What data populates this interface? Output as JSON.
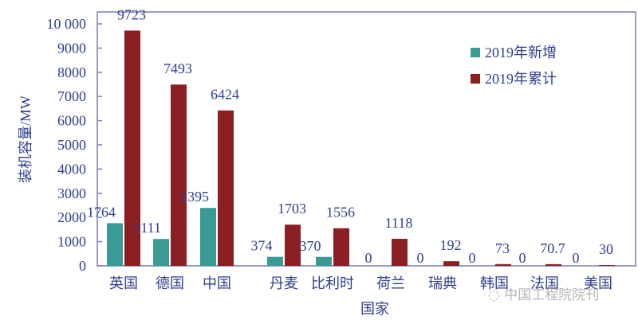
{
  "chart_data": {
    "type": "bar",
    "xlabel": "国家",
    "ylabel": "装机容量/MW",
    "ylim": [
      0,
      10000
    ],
    "yticks": [
      "0",
      "1000",
      "2000",
      "3000",
      "4000",
      "5000",
      "6000",
      "7000",
      "8000",
      "9000",
      "10 000"
    ],
    "categories": [
      "英国",
      "德国",
      "中国",
      "丹麦",
      "比利时",
      "荷兰",
      "瑞典",
      "韩国",
      "法国",
      "美国"
    ],
    "series": [
      {
        "name": "2019年新增",
        "color": "#3a9a94",
        "values": [
          1764,
          1111,
          2395,
          374,
          370,
          0,
          0,
          0,
          0,
          0
        ],
        "labels": [
          "1764",
          "1111",
          "2395",
          "374",
          "370",
          "0",
          "0",
          "0",
          "0",
          "0"
        ]
      },
      {
        "name": "2019年累计",
        "color": "#8b1f24",
        "values": [
          9723,
          7493,
          6424,
          1703,
          1556,
          1118,
          192,
          73,
          70.7,
          30
        ],
        "labels": [
          "9723",
          "7493",
          "6424",
          "1703",
          "1556",
          "1118",
          "192",
          "73",
          "70.7",
          "30"
        ]
      }
    ],
    "legend": "top-right",
    "grid": false
  },
  "watermark": "中国工程院院刊"
}
